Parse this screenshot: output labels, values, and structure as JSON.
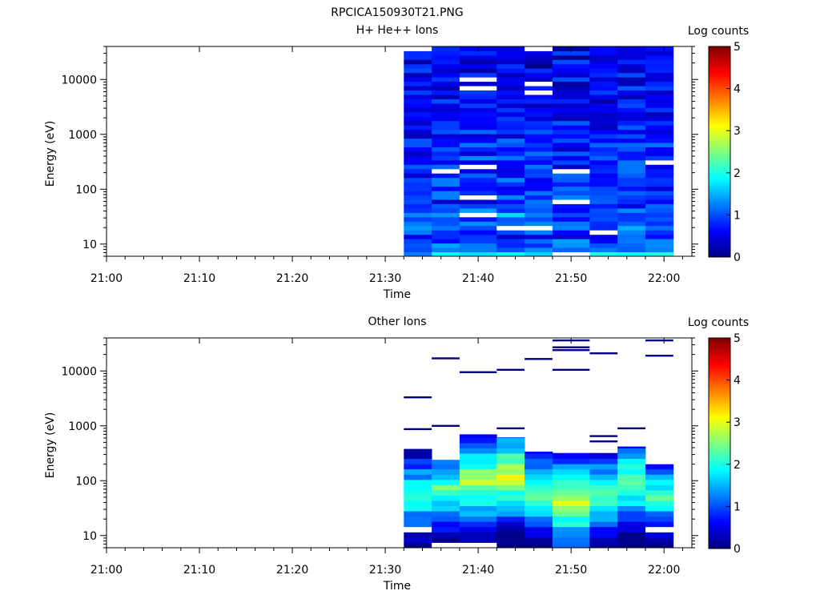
{
  "figure_title": "RPCICA150930T21.PNG",
  "chart_data": [
    {
      "type": "heatmap",
      "title": "H+ He++ Ions",
      "xlabel": "Time",
      "ylabel": "Energy (eV)",
      "yscale": "log",
      "xlim": [
        "21:00",
        "22:03"
      ],
      "ylim": [
        6,
        40000
      ],
      "x_ticks": [
        "21:00",
        "21:10",
        "21:20",
        "21:30",
        "21:40",
        "21:50",
        "22:00"
      ],
      "y_ticks": [
        "10",
        "100",
        "1000",
        "10000"
      ],
      "colorbar": {
        "label": "Log counts",
        "range": [
          0,
          5
        ],
        "ticks": [
          "0",
          "1",
          "2",
          "3",
          "4",
          "5"
        ]
      },
      "time_bins": [
        "21:32",
        "21:35",
        "21:38",
        "21:42",
        "21:45",
        "21:48",
        "21:52",
        "21:55",
        "21:58",
        "22:01"
      ],
      "energy_range": [
        6,
        40000
      ],
      "level_profile": [
        1.6,
        1.0,
        1.2,
        1.0,
        0.8,
        0.9,
        1.1,
        1.0,
        1.0,
        1.3,
        1.0,
        0.9,
        0.8,
        1.0,
        0.9,
        0.8,
        1.0,
        0.9,
        0.8,
        0.9,
        0.8,
        0.8,
        0.9,
        0.8,
        0.8,
        0.9,
        0.8,
        0.7,
        0.8,
        0.7,
        0.8,
        0.7,
        0.7,
        0.8,
        0.7,
        0.6,
        0.7,
        0.6,
        0.7,
        0.6,
        0.6,
        0.7,
        0.6,
        0.5,
        0.6,
        0.5,
        0.6,
        0.5
      ]
    },
    {
      "type": "heatmap",
      "title": "Other Ions",
      "xlabel": "Time",
      "ylabel": "Energy (eV)",
      "yscale": "log",
      "xlim": [
        "21:00",
        "22:03"
      ],
      "ylim": [
        6,
        40000
      ],
      "x_ticks": [
        "21:00",
        "21:10",
        "21:20",
        "21:30",
        "21:40",
        "21:50",
        "22:00"
      ],
      "y_ticks": [
        "10",
        "100",
        "1000",
        "10000"
      ],
      "colorbar": {
        "label": "Log counts",
        "range": [
          0,
          5
        ],
        "ticks": [
          "0",
          "1",
          "2",
          "3",
          "4",
          "5"
        ]
      },
      "time_bins": [
        "21:32",
        "21:35",
        "21:38",
        "21:42",
        "21:45",
        "21:48",
        "21:52",
        "21:55",
        "21:58",
        "22:01"
      ],
      "bin_energy_max": [
        380,
        240,
        700,
        620,
        340,
        320,
        320,
        420,
        200
      ],
      "bin_peak_energy": [
        55,
        70,
        95,
        130,
        60,
        40,
        55,
        90,
        55
      ],
      "bin_peak_level": [
        2.3,
        2.4,
        2.8,
        3.0,
        2.5,
        2.9,
        2.5,
        2.6,
        2.3
      ],
      "high_energy_traces": [
        {
          "bin": 0,
          "energies": [
            3300,
            870
          ]
        },
        {
          "bin": 1,
          "energies": [
            17000,
            1000
          ]
        },
        {
          "bin": 2,
          "energies": [
            9500
          ]
        },
        {
          "bin": 3,
          "energies": [
            10500,
            900
          ]
        },
        {
          "bin": 4,
          "energies": [
            16500
          ]
        },
        {
          "bin": 5,
          "energies": [
            36000,
            27000,
            24000,
            10500
          ]
        },
        {
          "bin": 6,
          "energies": [
            21000,
            650,
            520
          ]
        },
        {
          "bin": 7,
          "energies": [
            900
          ]
        },
        {
          "bin": 8,
          "energies": [
            36000,
            19000
          ]
        }
      ]
    }
  ]
}
